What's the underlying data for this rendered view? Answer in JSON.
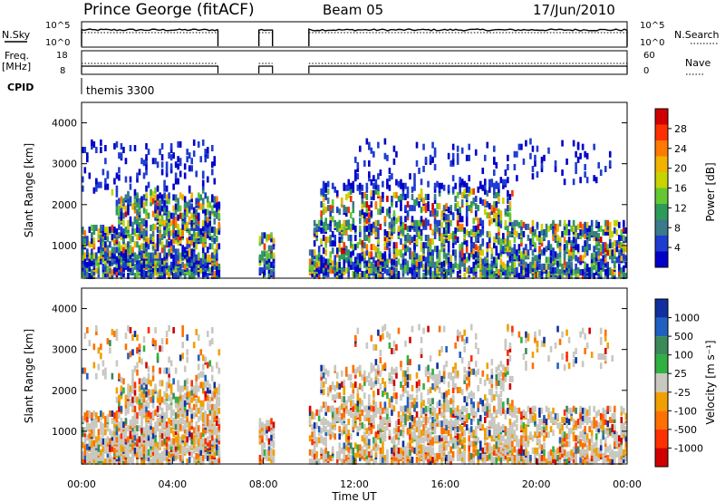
{
  "header": {
    "station": "Prince George (fitACF)",
    "beam": "Beam 05",
    "date": "17/Jun/2010"
  },
  "status_panels": {
    "nsky_label": "N.Sky",
    "nsky_ticks": [
      "10^5",
      "10^0"
    ],
    "nsearch_label": "N.Search",
    "nsearch_ticks": [
      "10^5",
      "10^0"
    ],
    "freq_label": "Freq.",
    "freq_unit": "[MHz]",
    "freq_ticks": [
      "18",
      "8"
    ],
    "nave_label": "Nave",
    "nave_ticks": [
      "60",
      "0"
    ],
    "cpid_label": "CPID",
    "cpid_value": "themis 3300"
  },
  "chart_data": [
    {
      "type": "heatmap",
      "title": "",
      "xlabel": "",
      "ylabel": "Slant Range [km]",
      "ylim": [
        200,
        4500
      ],
      "yticks": [
        "4000",
        "3000",
        "2000",
        "1000"
      ],
      "xlim_hours": [
        0,
        24
      ],
      "data_gaps_ut": [
        [
          6.0,
          7.8
        ],
        [
          8.4,
          10.0
        ]
      ],
      "colorbar": {
        "label": "Power [dB]",
        "ticks": [
          "28",
          "24",
          "20",
          "16",
          "12",
          "8",
          "4"
        ],
        "colors": [
          "#d10000",
          "#ff3000",
          "#ff7a00",
          "#f0b400",
          "#c8d400",
          "#64c832",
          "#2e9a5a",
          "#3a7a8a",
          "#1e3cd0",
          "#0000c8"
        ]
      }
    },
    {
      "type": "heatmap",
      "title": "",
      "xlabel": "Time UT",
      "ylabel": "Slant Range [km]",
      "ylim": [
        200,
        4500
      ],
      "yticks": [
        "4000",
        "3000",
        "2000",
        "1000"
      ],
      "xticks": [
        "00:00",
        "04:00",
        "08:00",
        "12:00",
        "16:00",
        "20:00",
        "00:00"
      ],
      "xlim_hours": [
        0,
        24
      ],
      "data_gaps_ut": [
        [
          6.0,
          7.8
        ],
        [
          8.4,
          10.0
        ]
      ],
      "colorbar": {
        "label": "Velocity [m s⁻¹]",
        "ticks": [
          "1000",
          "500",
          "100",
          "25",
          "-25",
          "-100",
          "-500",
          "-1000"
        ],
        "colors": [
          "#1030a0",
          "#2060c0",
          "#3a8a5a",
          "#30b040",
          "#c8c8c0",
          "#f0a000",
          "#ff7000",
          "#ff3000",
          "#d00000"
        ]
      }
    }
  ]
}
